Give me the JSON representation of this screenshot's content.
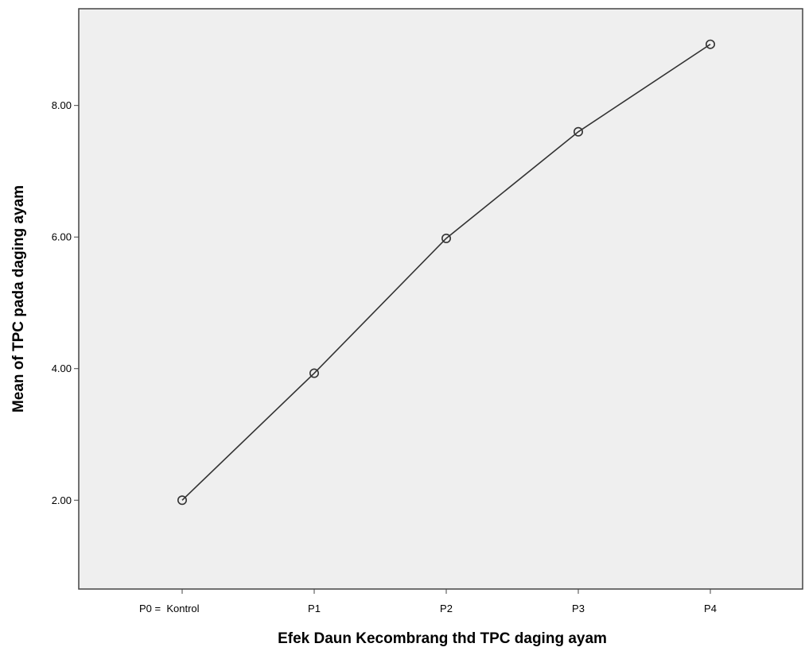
{
  "chart_data": {
    "type": "line",
    "xlabel": "Efek Daun Kecombrang thd TPC daging ayam",
    "ylabel": "Mean of TPC pada daging ayam",
    "categories": [
      "P0 =  Kontrol",
      "P1",
      "P2",
      "P3",
      "P4"
    ],
    "values": [
      2.0,
      3.93,
      5.98,
      7.6,
      8.93
    ],
    "ylim": [
      0.65,
      9.47
    ],
    "yticks": [
      "2.00",
      "4.00",
      "6.00",
      "8.00"
    ],
    "marker": "open-circle",
    "grid": false,
    "colors": {
      "plot_background": "#efefef",
      "line": "#333333",
      "frame": "#444444"
    }
  }
}
